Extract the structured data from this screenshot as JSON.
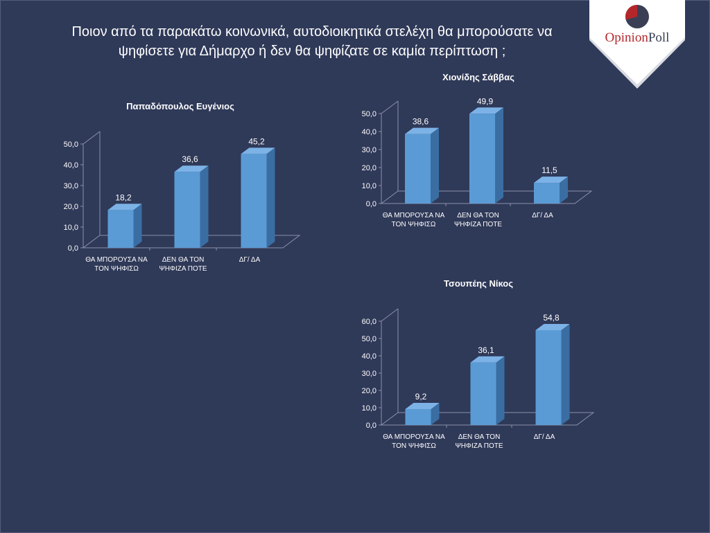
{
  "page": {
    "title_lines": [
      "Ποιον από τα παρακάτω κοινωνικά, αυτοδιοικητικά στελέχη θα μπορούσατε να",
      "ψηφίσετε για Δήμαρχο ή  δεν θα ψηφίζατε σε καμία περίπτωση ;"
    ],
    "logo": {
      "opinion": "Opinion",
      "poll": "Poll",
      "icon": "pie-chart-logo-icon"
    }
  },
  "colors": {
    "background": "#2f3958",
    "bar_front": "#5b9bd5",
    "bar_side": "#3a6ea3",
    "bar_top": "#7db2e6",
    "text": "#ffffff",
    "logo_red": "#b5262b"
  },
  "chart_data": [
    {
      "type": "bar",
      "title": "Παπαδόπουλος Ευγένιος",
      "categories": [
        [
          "ΘΑ ΜΠΟΡΟΥΣΑ ΝΑ",
          "ΤΟΝ ΨΗΦΙΣΩ"
        ],
        [
          "ΔΕΝ ΘΑ ΤΟΝ",
          "ΨΗΦΙΖΑ ΠΟΤΕ"
        ],
        [
          "ΔΓ/ ΔΑ"
        ]
      ],
      "values": [
        18.2,
        36.6,
        45.2
      ],
      "value_labels": [
        "18,2",
        "36,6",
        "45,2"
      ],
      "yticks": [
        "0,0",
        "10,0",
        "20,0",
        "30,0",
        "40,0",
        "50,0"
      ],
      "ylim": [
        0,
        50
      ],
      "grid": false,
      "legend": "none"
    },
    {
      "type": "bar",
      "title": "Χιονίδης Σάββας",
      "categories": [
        [
          "ΘΑ ΜΠΟΡΟΥΣΑ ΝΑ",
          "ΤΟΝ ΨΗΦΙΣΩ"
        ],
        [
          "ΔΕΝ ΘΑ ΤΟΝ",
          "ΨΗΦΙΖΑ ΠΟΤΕ"
        ],
        [
          "ΔΓ/ ΔΑ"
        ]
      ],
      "values": [
        38.6,
        49.9,
        11.5
      ],
      "value_labels": [
        "38,6",
        "49,9",
        "11,5"
      ],
      "yticks": [
        "0,0",
        "10,0",
        "20,0",
        "30,0",
        "40,0",
        "50,0"
      ],
      "ylim": [
        0,
        50
      ],
      "grid": false,
      "legend": "none"
    },
    {
      "type": "bar",
      "title": "Τσουπέης Νίκος",
      "categories": [
        [
          "ΘΑ ΜΠΟΡΟΥΣΑ ΝΑ",
          "ΤΟΝ ΨΗΦΙΣΩ"
        ],
        [
          "ΔΕΝ ΘΑ ΤΟΝ",
          "ΨΗΦΙΖΑ ΠΟΤΕ"
        ],
        [
          "ΔΓ/ ΔΑ"
        ]
      ],
      "values": [
        9.2,
        36.1,
        54.8
      ],
      "value_labels": [
        "9,2",
        "36,1",
        "54,8"
      ],
      "yticks": [
        "0,0",
        "10,0",
        "20,0",
        "30,0",
        "40,0",
        "50,0",
        "60,0"
      ],
      "ylim": [
        0,
        60
      ],
      "grid": false,
      "legend": "none"
    }
  ]
}
